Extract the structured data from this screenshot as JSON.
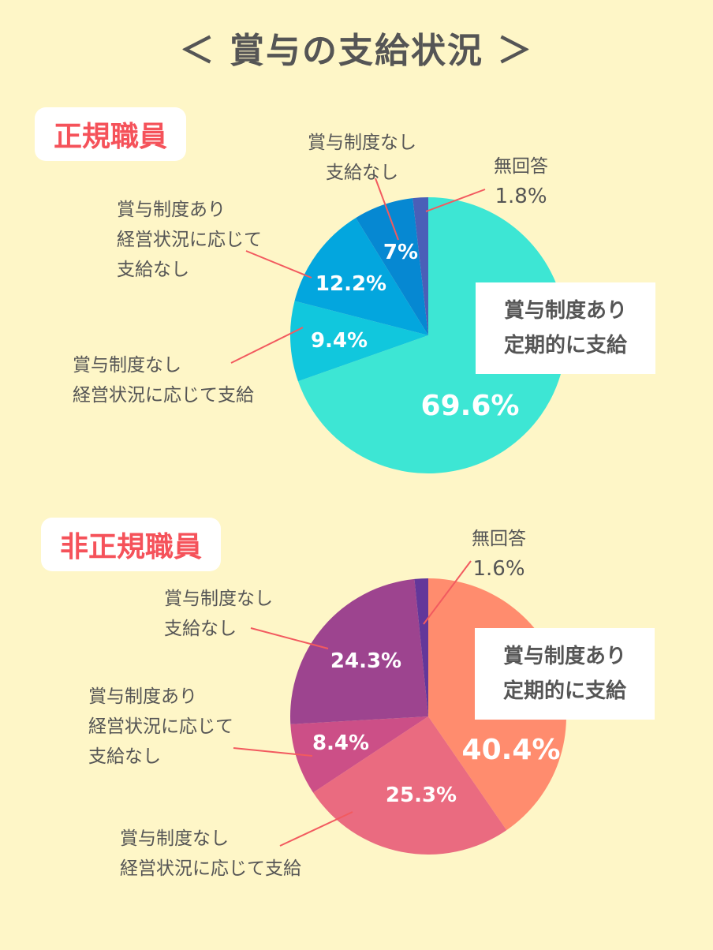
{
  "title": "＜ 賞与の支給状況 ＞",
  "sections": [
    {
      "tag": "正規職員",
      "callout_line1": "賞与制度あり",
      "callout_line2": "定期的に支給",
      "labels": {
        "no_system_no_pay": [
          "賞与制度なし",
          "支給なし"
        ],
        "no_answer": [
          "無回答",
          "1.8%"
        ],
        "system_no_pay": [
          "賞与制度あり",
          "経営状況に応じて",
          "支給なし"
        ],
        "no_system_pay": [
          "賞与制度なし",
          "経営状況に応じて支給"
        ]
      },
      "pct": {
        "regular": "69.6%",
        "no_system_pay": "9.4%",
        "system_no_pay": "12.2%",
        "no_system_no_pay": "7%"
      }
    },
    {
      "tag": "非正規職員",
      "callout_line1": "賞与制度あり",
      "callout_line2": "定期的に支給",
      "labels": {
        "no_answer": [
          "無回答",
          "1.6%"
        ],
        "no_system_no_pay": [
          "賞与制度なし",
          "支給なし"
        ],
        "system_no_pay": [
          "賞与制度あり",
          "経営状況に応じて",
          "支給なし"
        ],
        "no_system_pay": [
          "賞与制度なし",
          "経営状況に応じて支給"
        ]
      },
      "pct": {
        "regular": "40.4%",
        "no_system_pay": "25.3%",
        "system_no_pay": "8.4%",
        "no_system_no_pay": "24.3%"
      }
    }
  ],
  "chart_data": [
    {
      "type": "pie",
      "title": "正規職員",
      "categories": [
        "賞与制度あり 定期的に支給",
        "賞与制度なし 経営状況に応じて支給",
        "賞与制度あり 経営状況に応じて支給なし",
        "賞与制度なし 支給なし",
        "無回答"
      ],
      "values": [
        69.6,
        9.4,
        12.2,
        7.0,
        1.8
      ],
      "colors": [
        "#3de6d4",
        "#11c7dd",
        "#03a6de",
        "#0688d2",
        "#4a5fb8"
      ],
      "unit": "%"
    },
    {
      "type": "pie",
      "title": "非正規職員",
      "categories": [
        "賞与制度あり 定期的に支給",
        "賞与制度なし 経営状況に応じて支給",
        "賞与制度あり 経営状況に応じて支給なし",
        "賞与制度なし 支給なし",
        "無回答"
      ],
      "values": [
        40.4,
        25.3,
        8.4,
        24.3,
        1.6
      ],
      "colors": [
        "#ff8c6e",
        "#ea6b80",
        "#cc4f87",
        "#9d448f",
        "#63379a"
      ],
      "unit": "%"
    }
  ]
}
